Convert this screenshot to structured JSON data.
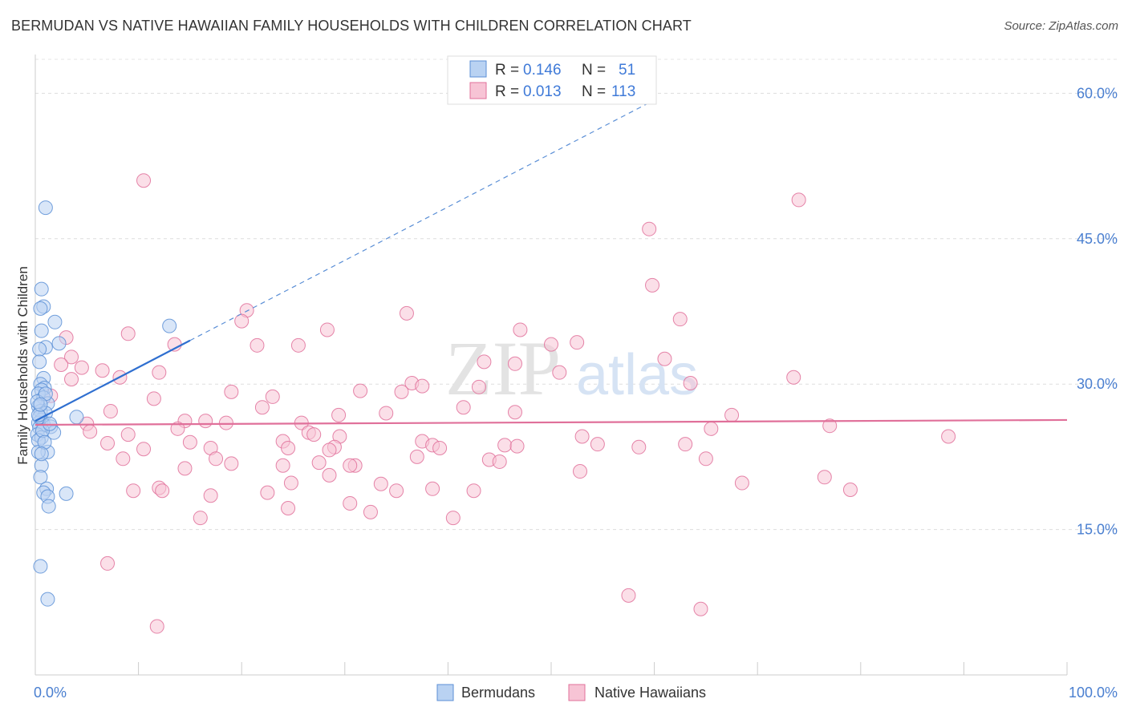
{
  "chart_data": {
    "type": "scatter",
    "title": "BERMUDAN VS NATIVE HAWAIIAN FAMILY HOUSEHOLDS WITH CHILDREN CORRELATION CHART",
    "source": "Source: ZipAtlas.com",
    "xlabel": "",
    "ylabel": "Family Households with Children",
    "xlim": [
      0,
      100
    ],
    "ylim": [
      0,
      64
    ],
    "x_tick_labels": [
      {
        "value": 0,
        "label": "0.0%"
      },
      {
        "value": 100,
        "label": "100.0%"
      }
    ],
    "y_tick_labels": [
      {
        "value": 15,
        "label": "15.0%"
      },
      {
        "value": 30,
        "label": "30.0%"
      },
      {
        "value": 45,
        "label": "45.0%"
      },
      {
        "value": 60,
        "label": "60.0%"
      }
    ],
    "watermark": {
      "part1": "ZIP",
      "part2": "atlas"
    },
    "legend_top": [
      {
        "r_label": "R =",
        "r_value": "0.146",
        "n_label": "N =",
        "n_value": "51"
      },
      {
        "r_label": "R =",
        "r_value": "0.013",
        "n_label": "N =",
        "n_value": "113"
      }
    ],
    "series": [
      {
        "name": "Bermudans",
        "color": "#5b8fd6",
        "fill": "#b9d2f2",
        "trend": {
          "x0": 0,
          "y0": 26.2,
          "x1": 15,
          "y1": 34.5,
          "dash_to_x": 60,
          "dash_to_y": 59.3
        },
        "points": [
          [
            1.0,
            48.2
          ],
          [
            0.6,
            39.8
          ],
          [
            0.8,
            38.0
          ],
          [
            0.5,
            37.8
          ],
          [
            1.9,
            36.4
          ],
          [
            13.0,
            36.0
          ],
          [
            0.6,
            35.5
          ],
          [
            2.3,
            34.2
          ],
          [
            1.0,
            33.8
          ],
          [
            0.4,
            33.6
          ],
          [
            0.4,
            32.3
          ],
          [
            0.8,
            30.6
          ],
          [
            0.5,
            30.0
          ],
          [
            0.9,
            29.6
          ],
          [
            0.6,
            29.4
          ],
          [
            0.3,
            29.0
          ],
          [
            0.8,
            28.6
          ],
          [
            1.2,
            28.0
          ],
          [
            0.3,
            27.7
          ],
          [
            0.5,
            27.2
          ],
          [
            1.0,
            27.0
          ],
          [
            4.0,
            26.6
          ],
          [
            0.6,
            26.3
          ],
          [
            0.3,
            26.0
          ],
          [
            0.8,
            25.8
          ],
          [
            1.5,
            25.6
          ],
          [
            0.4,
            25.5
          ],
          [
            1.8,
            25.0
          ],
          [
            0.2,
            24.8
          ],
          [
            0.6,
            24.5
          ],
          [
            0.3,
            24.2
          ],
          [
            1.2,
            23.0
          ],
          [
            0.3,
            23.0
          ],
          [
            0.6,
            21.6
          ],
          [
            0.5,
            20.4
          ],
          [
            1.1,
            19.2
          ],
          [
            0.8,
            18.8
          ],
          [
            3.0,
            18.7
          ],
          [
            1.2,
            18.4
          ],
          [
            1.3,
            17.4
          ],
          [
            0.5,
            11.2
          ],
          [
            1.2,
            7.8
          ],
          [
            0.4,
            26.6
          ],
          [
            0.7,
            25.2
          ],
          [
            0.9,
            24.0
          ],
          [
            0.2,
            28.2
          ],
          [
            1.4,
            25.9
          ],
          [
            0.6,
            22.8
          ],
          [
            0.3,
            26.8
          ],
          [
            1.0,
            29.0
          ],
          [
            0.5,
            27.9
          ]
        ]
      },
      {
        "name": "Native Hawaiians",
        "color": "#e0709a",
        "fill": "#f7c4d5",
        "trend": {
          "x0": 0,
          "y0": 25.8,
          "x1": 100,
          "y1": 26.3
        },
        "points": [
          [
            10.5,
            51.0
          ],
          [
            74.0,
            49.0
          ],
          [
            59.5,
            46.0
          ],
          [
            59.8,
            40.2
          ],
          [
            20.5,
            37.6
          ],
          [
            36.0,
            37.3
          ],
          [
            20.0,
            36.5
          ],
          [
            62.5,
            36.7
          ],
          [
            28.3,
            35.6
          ],
          [
            47.0,
            35.6
          ],
          [
            9.0,
            35.2
          ],
          [
            3.0,
            34.8
          ],
          [
            52.5,
            34.3
          ],
          [
            21.5,
            34.0
          ],
          [
            25.5,
            34.0
          ],
          [
            13.5,
            34.1
          ],
          [
            50.0,
            34.1
          ],
          [
            3.5,
            32.8
          ],
          [
            61.0,
            32.6
          ],
          [
            43.5,
            32.3
          ],
          [
            46.5,
            32.1
          ],
          [
            2.5,
            32.0
          ],
          [
            4.5,
            31.7
          ],
          [
            6.5,
            31.4
          ],
          [
            12.0,
            31.2
          ],
          [
            50.8,
            31.2
          ],
          [
            8.2,
            30.7
          ],
          [
            3.5,
            30.5
          ],
          [
            73.5,
            30.7
          ],
          [
            36.5,
            30.1
          ],
          [
            63.5,
            30.1
          ],
          [
            37.5,
            29.8
          ],
          [
            43.0,
            29.7
          ],
          [
            19.0,
            29.2
          ],
          [
            31.5,
            29.3
          ],
          [
            35.5,
            29.2
          ],
          [
            1.5,
            28.8
          ],
          [
            23.0,
            28.7
          ],
          [
            11.5,
            28.5
          ],
          [
            22.0,
            27.6
          ],
          [
            41.5,
            27.6
          ],
          [
            46.5,
            27.1
          ],
          [
            7.3,
            27.2
          ],
          [
            34.0,
            27.0
          ],
          [
            67.5,
            26.8
          ],
          [
            14.5,
            26.2
          ],
          [
            16.5,
            26.2
          ],
          [
            18.5,
            26.0
          ],
          [
            25.8,
            26.0
          ],
          [
            5.0,
            25.9
          ],
          [
            77.0,
            25.7
          ],
          [
            13.8,
            25.4
          ],
          [
            5.3,
            25.1
          ],
          [
            65.5,
            25.4
          ],
          [
            26.5,
            25.0
          ],
          [
            9.0,
            24.8
          ],
          [
            27.0,
            24.8
          ],
          [
            29.5,
            24.6
          ],
          [
            24.0,
            24.1
          ],
          [
            15.0,
            24.0
          ],
          [
            37.5,
            24.1
          ],
          [
            7.0,
            23.9
          ],
          [
            38.5,
            23.7
          ],
          [
            63.0,
            23.8
          ],
          [
            54.5,
            23.8
          ],
          [
            45.5,
            23.7
          ],
          [
            39.2,
            23.4
          ],
          [
            58.5,
            23.5
          ],
          [
            46.7,
            23.6
          ],
          [
            17.0,
            23.4
          ],
          [
            24.5,
            23.4
          ],
          [
            29.0,
            23.5
          ],
          [
            10.5,
            23.3
          ],
          [
            28.5,
            23.2
          ],
          [
            37.0,
            22.5
          ],
          [
            17.5,
            22.3
          ],
          [
            8.5,
            22.3
          ],
          [
            44.0,
            22.2
          ],
          [
            65.0,
            22.3
          ],
          [
            45.0,
            22.0
          ],
          [
            19.0,
            21.8
          ],
          [
            31.0,
            21.6
          ],
          [
            30.5,
            21.6
          ],
          [
            24.0,
            21.6
          ],
          [
            27.5,
            21.9
          ],
          [
            14.5,
            21.3
          ],
          [
            52.8,
            21.0
          ],
          [
            76.5,
            20.4
          ],
          [
            28.5,
            20.6
          ],
          [
            24.8,
            19.8
          ],
          [
            33.5,
            19.7
          ],
          [
            68.5,
            19.8
          ],
          [
            79.0,
            19.1
          ],
          [
            12.0,
            19.3
          ],
          [
            9.5,
            19.0
          ],
          [
            12.3,
            19.0
          ],
          [
            35.0,
            19.0
          ],
          [
            42.5,
            19.0
          ],
          [
            38.5,
            19.2
          ],
          [
            17.0,
            18.5
          ],
          [
            22.5,
            18.8
          ],
          [
            30.5,
            17.7
          ],
          [
            24.5,
            17.2
          ],
          [
            32.5,
            16.8
          ],
          [
            16.0,
            16.2
          ],
          [
            40.5,
            16.2
          ],
          [
            7.0,
            11.5
          ],
          [
            57.5,
            8.2
          ],
          [
            64.5,
            6.8
          ],
          [
            11.8,
            5.0
          ],
          [
            53.0,
            24.6
          ],
          [
            88.5,
            24.6
          ],
          [
            29.4,
            26.8
          ]
        ]
      }
    ]
  }
}
